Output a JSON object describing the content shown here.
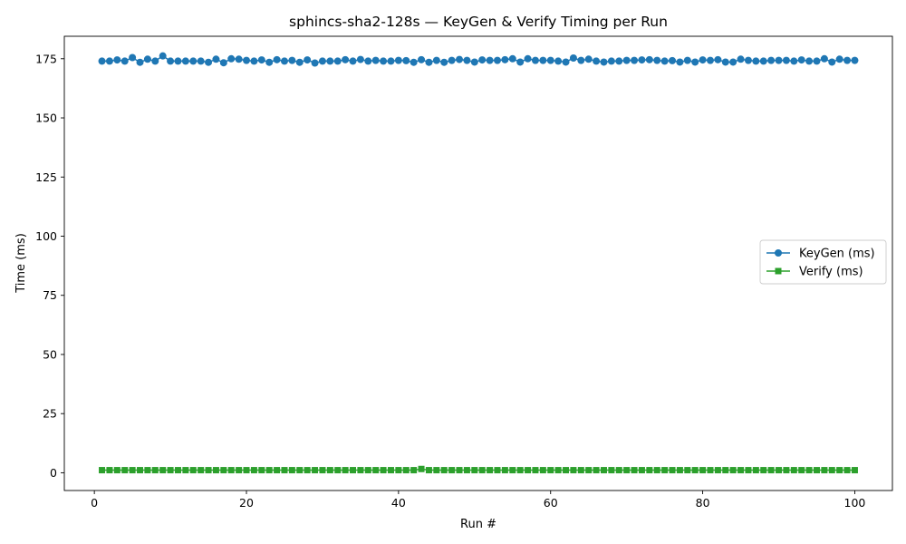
{
  "chart_data": {
    "type": "line",
    "title": "sphincs-sha2-128s — KeyGen & Verify Timing per Run",
    "xlabel": "Run #",
    "ylabel": "Time (ms)",
    "xlim": [
      -3.95,
      104.95
    ],
    "ylim": [
      -7.5,
      184.5
    ],
    "xticks": [
      0,
      20,
      40,
      60,
      80,
      100
    ],
    "yticks": [
      0,
      25,
      50,
      75,
      100,
      125,
      150,
      175
    ],
    "grid": false,
    "legend_position": "center-right",
    "x": [
      1,
      2,
      3,
      4,
      5,
      6,
      7,
      8,
      9,
      10,
      11,
      12,
      13,
      14,
      15,
      16,
      17,
      18,
      19,
      20,
      21,
      22,
      23,
      24,
      25,
      26,
      27,
      28,
      29,
      30,
      31,
      32,
      33,
      34,
      35,
      36,
      37,
      38,
      39,
      40,
      41,
      42,
      43,
      44,
      45,
      46,
      47,
      48,
      49,
      50,
      51,
      52,
      53,
      54,
      55,
      56,
      57,
      58,
      59,
      60,
      61,
      62,
      63,
      64,
      65,
      66,
      67,
      68,
      69,
      70,
      71,
      72,
      73,
      74,
      75,
      76,
      77,
      78,
      79,
      80,
      81,
      82,
      83,
      84,
      85,
      86,
      87,
      88,
      89,
      90,
      91,
      92,
      93,
      94,
      95,
      96,
      97,
      98,
      99,
      100
    ],
    "series": [
      {
        "name": "KeyGen (ms)",
        "color": "#1f77b4",
        "marker": "circle",
        "values": [
          174.0,
          174.0,
          174.5,
          174.0,
          175.5,
          173.5,
          174.8,
          174.0,
          176.2,
          174.0,
          174.0,
          174.0,
          174.0,
          174.0,
          173.5,
          174.8,
          173.3,
          175.0,
          174.8,
          174.3,
          174.0,
          174.5,
          173.5,
          174.6,
          174.0,
          174.3,
          173.5,
          174.5,
          173.2,
          174.0,
          174.0,
          174.0,
          174.6,
          174.0,
          174.7,
          174.0,
          174.3,
          174.0,
          174.0,
          174.3,
          174.2,
          173.5,
          174.6,
          173.5,
          174.3,
          173.5,
          174.3,
          174.7,
          174.3,
          173.6,
          174.5,
          174.3,
          174.3,
          174.6,
          175.0,
          173.6,
          175.0,
          174.3,
          174.3,
          174.3,
          174.0,
          173.6,
          175.3,
          174.3,
          174.8,
          174.0,
          173.6,
          174.0,
          174.0,
          174.3,
          174.3,
          174.5,
          174.6,
          174.3,
          174.0,
          174.2,
          173.6,
          174.3,
          173.6,
          174.5,
          174.3,
          174.6,
          173.6,
          173.6,
          174.8,
          174.3,
          174.0,
          174.0,
          174.3,
          174.3,
          174.3,
          174.0,
          174.5,
          174.0,
          174.0,
          175.0,
          173.6,
          174.8,
          174.3,
          174.3
        ]
      },
      {
        "name": "Verify (ms)",
        "color": "#2ca02c",
        "marker": "square",
        "values": [
          1.1,
          1.1,
          1.1,
          1.1,
          1.1,
          1.1,
          1.1,
          1.1,
          1.1,
          1.1,
          1.1,
          1.1,
          1.1,
          1.1,
          1.1,
          1.1,
          1.1,
          1.1,
          1.1,
          1.1,
          1.1,
          1.1,
          1.1,
          1.1,
          1.1,
          1.1,
          1.1,
          1.1,
          1.1,
          1.1,
          1.1,
          1.1,
          1.1,
          1.1,
          1.1,
          1.1,
          1.1,
          1.1,
          1.1,
          1.1,
          1.1,
          1.1,
          1.6,
          1.1,
          1.1,
          1.1,
          1.1,
          1.1,
          1.1,
          1.1,
          1.1,
          1.1,
          1.1,
          1.1,
          1.1,
          1.1,
          1.1,
          1.1,
          1.1,
          1.1,
          1.1,
          1.1,
          1.1,
          1.1,
          1.1,
          1.1,
          1.1,
          1.1,
          1.1,
          1.1,
          1.1,
          1.1,
          1.1,
          1.1,
          1.1,
          1.1,
          1.1,
          1.1,
          1.1,
          1.1,
          1.1,
          1.1,
          1.1,
          1.1,
          1.1,
          1.1,
          1.1,
          1.1,
          1.1,
          1.1,
          1.1,
          1.1,
          1.1,
          1.1,
          1.1,
          1.1,
          1.1,
          1.1,
          1.1,
          1.1
        ]
      }
    ]
  }
}
